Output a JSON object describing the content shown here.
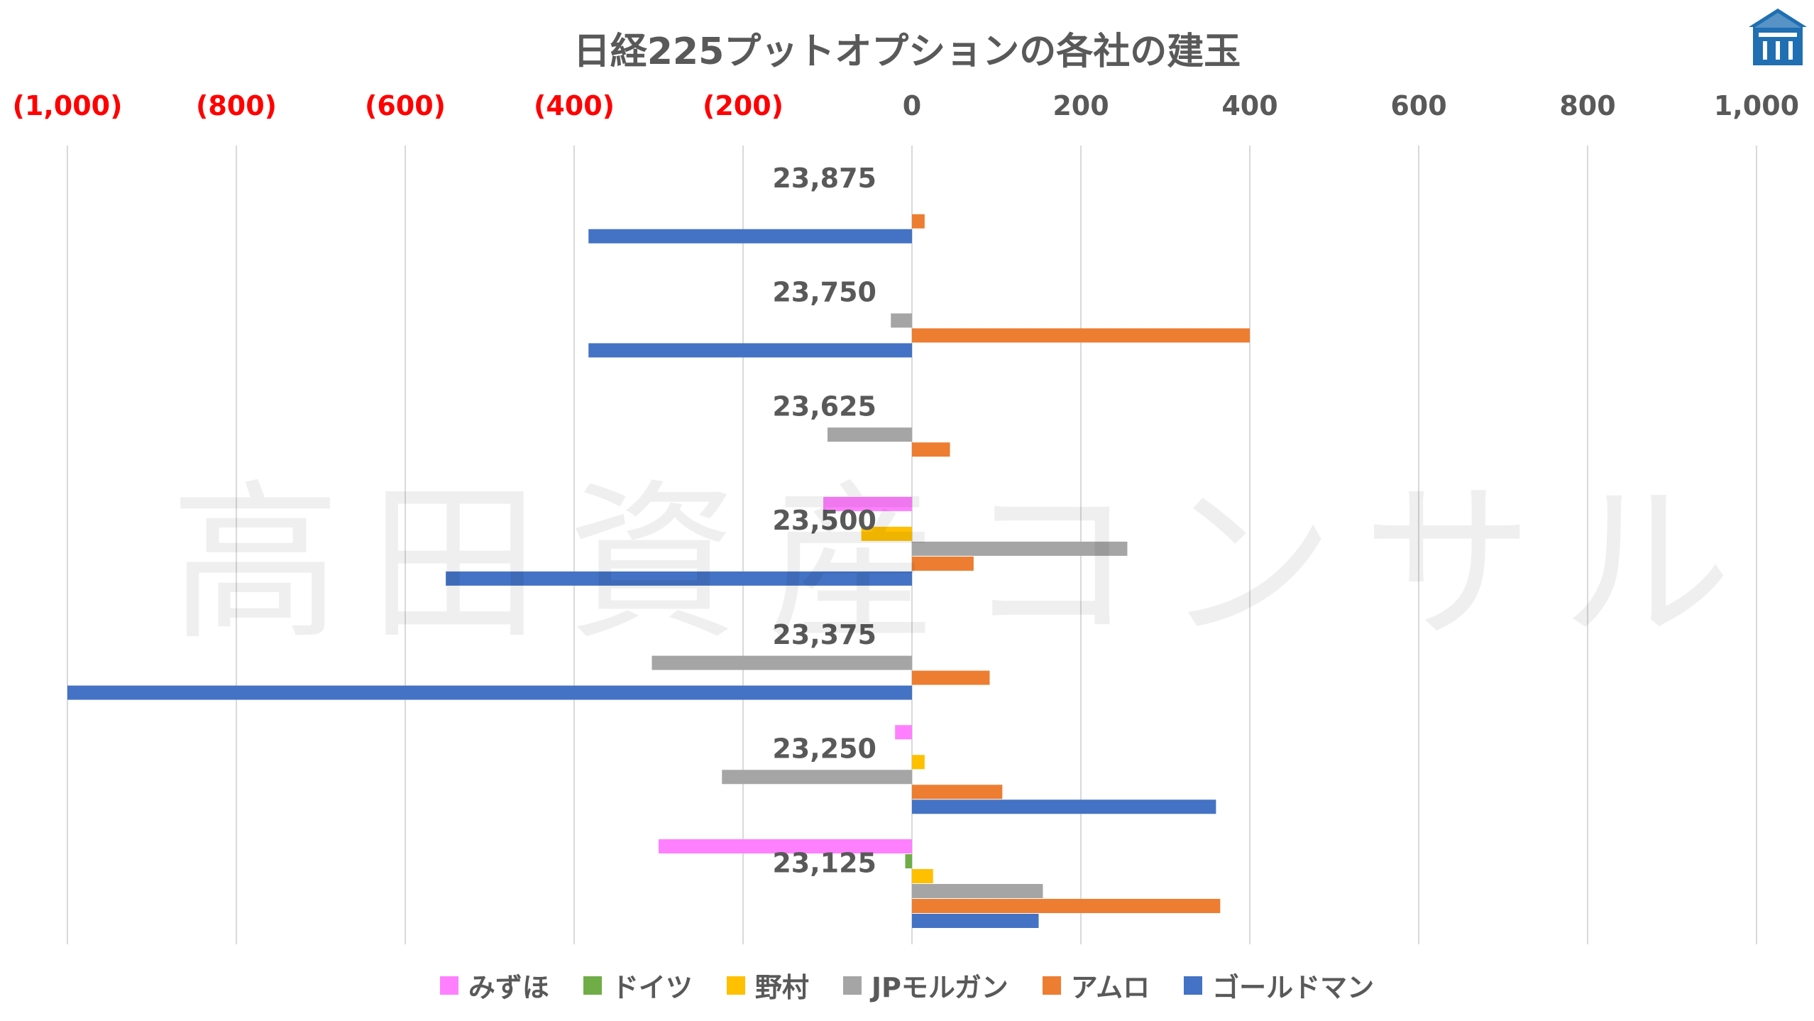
{
  "chart_data": {
    "type": "bar",
    "orientation": "horizontal",
    "title": "日経225プットオプションの各社の建玉",
    "watermark": "高田資産コンサル",
    "xlim": [
      -1000,
      1000
    ],
    "x_ticks": [
      {
        "value": -1000,
        "label": "(1,000)",
        "color": "#ff0000"
      },
      {
        "value": -800,
        "label": "(800)",
        "color": "#ff0000"
      },
      {
        "value": -600,
        "label": "(600)",
        "color": "#ff0000"
      },
      {
        "value": -400,
        "label": "(400)",
        "color": "#ff0000"
      },
      {
        "value": -200,
        "label": "(200)",
        "color": "#ff0000"
      },
      {
        "value": 0,
        "label": "0",
        "color": "#595959"
      },
      {
        "value": 200,
        "label": "200",
        "color": "#595959"
      },
      {
        "value": 400,
        "label": "400",
        "color": "#595959"
      },
      {
        "value": 600,
        "label": "600",
        "color": "#595959"
      },
      {
        "value": 800,
        "label": "800",
        "color": "#595959"
      },
      {
        "value": 1000,
        "label": "1,000",
        "color": "#595959"
      }
    ],
    "x_axis_position": "top",
    "grid": true,
    "legend_position": "bottom",
    "categories": [
      "23,875",
      "23,750",
      "23,625",
      "23,500",
      "23,375",
      "23,250",
      "23,125"
    ],
    "series": [
      {
        "name": "みずほ",
        "color": "#ff80ff",
        "values": [
          0,
          0,
          0,
          -105,
          0,
          -20,
          -300
        ]
      },
      {
        "name": "ドイツ",
        "color": "#70ad47",
        "values": [
          0,
          0,
          0,
          0,
          0,
          0,
          -8
        ]
      },
      {
        "name": "野村",
        "color": "#ffc000",
        "values": [
          0,
          0,
          0,
          -60,
          0,
          15,
          25
        ]
      },
      {
        "name": "JPモルガン",
        "color": "#a5a5a5",
        "values": [
          0,
          -25,
          -100,
          255,
          -308,
          -225,
          155
        ]
      },
      {
        "name": "アムロ",
        "color": "#ed7d31",
        "values": [
          15,
          400,
          45,
          73,
          92,
          107,
          365
        ]
      },
      {
        "name": "ゴールドマン",
        "color": "#4472c4",
        "values": [
          -383,
          -383,
          0,
          -552,
          -1000,
          360,
          150
        ]
      }
    ]
  }
}
